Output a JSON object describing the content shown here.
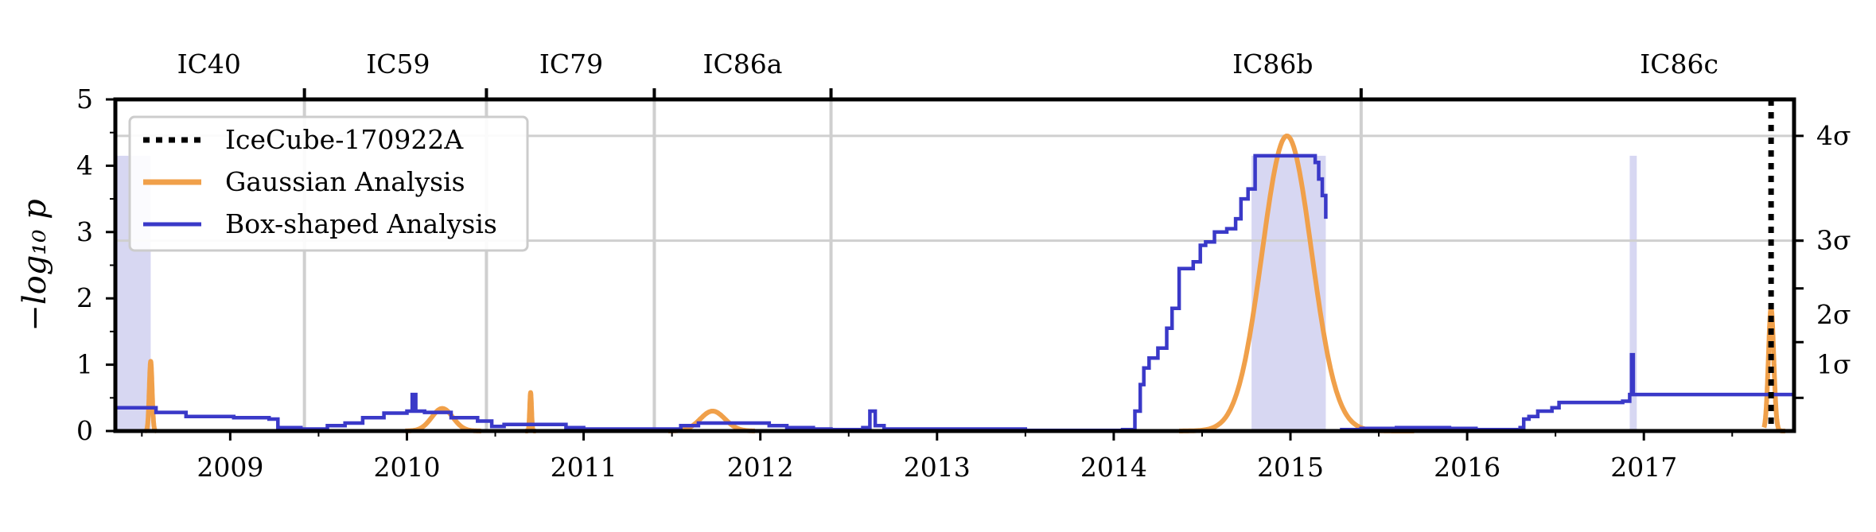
{
  "chart_data": {
    "type": "line",
    "title": "",
    "xlabel": "",
    "ylabel": "−log₁₀ p",
    "xlim": [
      2008.35,
      2017.85
    ],
    "ylim": [
      0,
      5
    ],
    "colors": {
      "box": "#3a39c8",
      "box_fill": "#d7d7f2",
      "gaussian": "#f0a04a",
      "grid": "#cfcfcf",
      "alert": "#000000"
    },
    "x_ticks": [
      2009,
      2010,
      2011,
      2012,
      2013,
      2014,
      2015,
      2016,
      2017
    ],
    "x_tick_labels": [
      "2009",
      "2010",
      "2011",
      "2012",
      "2013",
      "2014",
      "2015",
      "2016",
      "2017"
    ],
    "y_ticks": [
      0,
      1,
      2,
      3,
      4,
      5
    ],
    "y_tick_labels": [
      "0",
      "1",
      "2",
      "3",
      "4",
      "5"
    ],
    "sigma_axis": {
      "ticks": [
        0.5,
        1.34,
        2.15,
        2.87
      ],
      "labels": [
        "1σ",
        "2σ",
        "3σ",
        "4σ"
      ],
      "gridlines": [
        2.87,
        4.45
      ]
    },
    "seasons": {
      "boundaries": [
        2009.42,
        2010.45,
        2011.4,
        2012.4,
        2015.4
      ],
      "names": [
        "IC40",
        "IC59",
        "IC79",
        "IC86a",
        "IC86b",
        "IC86c"
      ],
      "label_x": [
        2008.88,
        2009.95,
        2010.93,
        2011.9,
        2014.9,
        2017.2
      ]
    },
    "alert": {
      "name": "IceCube-170922A",
      "x": 2017.72
    },
    "box_windows": [
      [
        2008.35,
        2008.55
      ],
      [
        2014.78,
        2015.2
      ],
      [
        2016.92,
        2016.96
      ]
    ],
    "series": [
      {
        "name": "Box-shaped Analysis",
        "kind": "step",
        "points": [
          [
            2008.35,
            0.35
          ],
          [
            2008.58,
            0.28
          ],
          [
            2008.75,
            0.22
          ],
          [
            2009.02,
            0.2
          ],
          [
            2009.22,
            0.18
          ],
          [
            2009.27,
            0.05
          ],
          [
            2009.4,
            0.03
          ],
          [
            2009.55,
            0.08
          ],
          [
            2009.65,
            0.12
          ],
          [
            2009.75,
            0.2
          ],
          [
            2009.87,
            0.27
          ],
          [
            2010.0,
            0.3
          ],
          [
            2010.03,
            0.55
          ],
          [
            2010.05,
            0.3
          ],
          [
            2010.1,
            0.28
          ],
          [
            2010.25,
            0.2
          ],
          [
            2010.4,
            0.15
          ],
          [
            2010.48,
            0.07
          ],
          [
            2010.55,
            0.1
          ],
          [
            2010.9,
            0.05
          ],
          [
            2011.0,
            0.03
          ],
          [
            2011.4,
            0.03
          ],
          [
            2011.55,
            0.08
          ],
          [
            2011.65,
            0.12
          ],
          [
            2012.05,
            0.08
          ],
          [
            2012.15,
            0.05
          ],
          [
            2012.3,
            0.03
          ],
          [
            2012.4,
            0.02
          ],
          [
            2012.58,
            0.05
          ],
          [
            2012.62,
            0.3
          ],
          [
            2012.65,
            0.08
          ],
          [
            2012.7,
            0.03
          ],
          [
            2013.5,
            0.01
          ],
          [
            2014.05,
            0.02
          ],
          [
            2014.12,
            0.3
          ],
          [
            2014.15,
            0.7
          ],
          [
            2014.17,
            0.95
          ],
          [
            2014.2,
            1.1
          ],
          [
            2014.25,
            1.25
          ],
          [
            2014.3,
            1.55
          ],
          [
            2014.33,
            1.85
          ],
          [
            2014.37,
            2.45
          ],
          [
            2014.45,
            2.55
          ],
          [
            2014.49,
            2.8
          ],
          [
            2014.52,
            2.85
          ],
          [
            2014.57,
            3.0
          ],
          [
            2014.64,
            3.05
          ],
          [
            2014.69,
            3.2
          ],
          [
            2014.72,
            3.5
          ],
          [
            2014.76,
            3.65
          ],
          [
            2014.8,
            4.15
          ],
          [
            2015.1,
            4.15
          ],
          [
            2015.14,
            4.05
          ],
          [
            2015.16,
            3.8
          ],
          [
            2015.18,
            3.55
          ],
          [
            2015.2,
            3.2
          ],
          [
            2015.25,
            null
          ],
          [
            2015.28,
            0.02
          ],
          [
            2015.4,
            0.04
          ],
          [
            2015.6,
            0.05
          ],
          [
            2015.9,
            0.04
          ],
          [
            2016.05,
            0.02
          ],
          [
            2016.3,
            0.05
          ],
          [
            2016.32,
            0.18
          ],
          [
            2016.35,
            0.22
          ],
          [
            2016.4,
            0.3
          ],
          [
            2016.48,
            0.35
          ],
          [
            2016.52,
            0.43
          ],
          [
            2016.88,
            0.45
          ],
          [
            2016.92,
            0.55
          ],
          [
            2016.93,
            1.15
          ],
          [
            2016.94,
            0.55
          ],
          [
            2017.7,
            0.55
          ],
          [
            2017.74,
            0.55
          ],
          [
            2017.85,
            0.55
          ]
        ]
      },
      {
        "name": "Gaussian Analysis",
        "kind": "curve",
        "segments": [
          {
            "x0": 2008.52,
            "x1": 2008.58,
            "mu": 2008.55,
            "sigma": 0.008,
            "peak": 1.05
          },
          {
            "x0": 2009.99,
            "x1": 2010.42,
            "mu": 2010.2,
            "sigma": 0.06,
            "peak": 0.34
          },
          {
            "x0": 2010.67,
            "x1": 2010.73,
            "mu": 2010.7,
            "sigma": 0.005,
            "peak": 0.58
          },
          {
            "x0": 2011.48,
            "x1": 2011.97,
            "mu": 2011.73,
            "sigma": 0.07,
            "peak": 0.3
          },
          {
            "x0": 2014.37,
            "x1": 2015.7,
            "mu": 2014.98,
            "sigma": 0.14,
            "peak": 4.45
          },
          {
            "x0": 2017.68,
            "x1": 2017.8,
            "mu": 2017.72,
            "sigma": 0.015,
            "peak": 1.85
          }
        ]
      },
      {
        "name": "IceCube-170922A",
        "kind": "alert"
      }
    ],
    "legend": {
      "placement": "upper-left",
      "entries": [
        "IceCube-170922A",
        "Gaussian Analysis",
        "Box-shaped Analysis"
      ]
    }
  }
}
